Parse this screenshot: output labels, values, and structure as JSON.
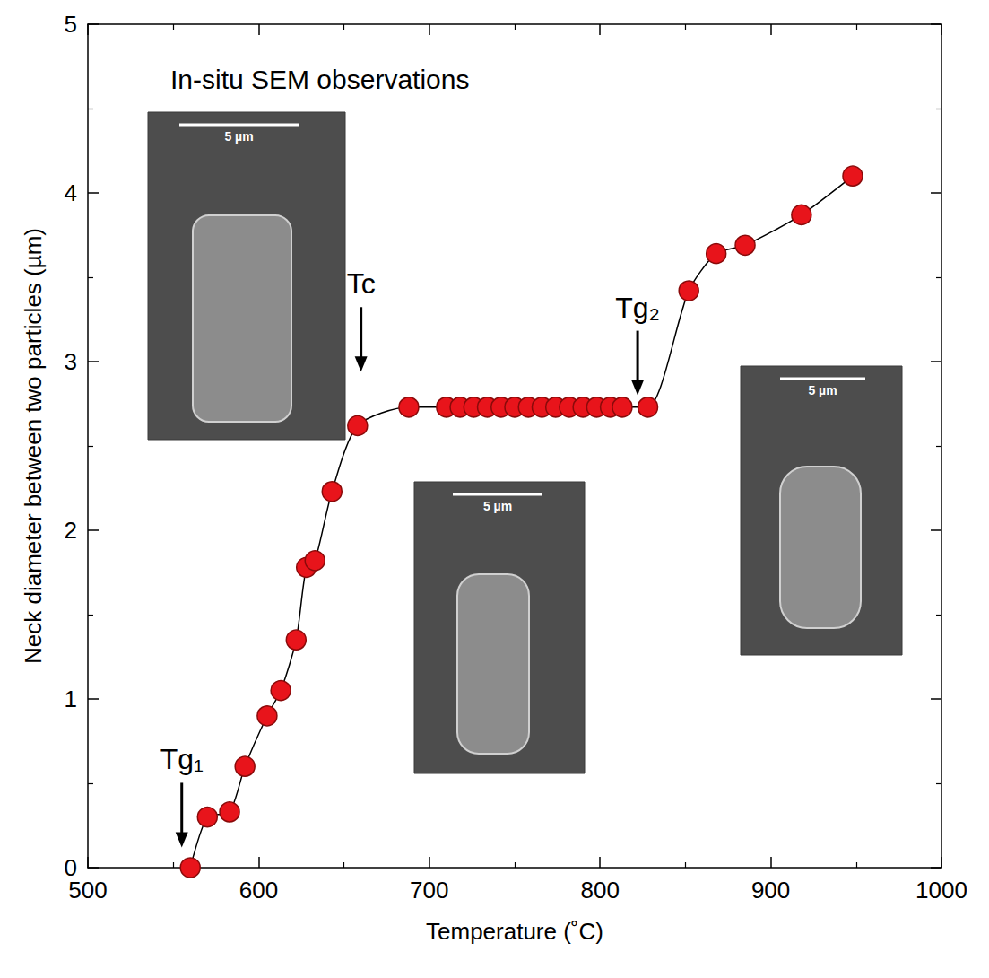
{
  "chart_data": {
    "type": "line",
    "title": "In-situ SEM observations",
    "x_label": "Temperature (˚C)",
    "y_label": "Neck diameter between two particles (µm)",
    "x": [
      560,
      570,
      583,
      592,
      605,
      613,
      622,
      628,
      633,
      643,
      658,
      688,
      710,
      718,
      726,
      734,
      742,
      750,
      758,
      766,
      774,
      782,
      790,
      798,
      806,
      813,
      828,
      852,
      868,
      885,
      918,
      948
    ],
    "values": [
      0,
      0.3,
      0.33,
      0.6,
      0.9,
      1.05,
      1.35,
      1.78,
      1.82,
      2.23,
      2.62,
      2.73,
      2.73,
      2.73,
      2.73,
      2.73,
      2.73,
      2.73,
      2.73,
      2.73,
      2.73,
      2.73,
      2.73,
      2.73,
      2.73,
      2.73,
      2.73,
      3.42,
      3.64,
      3.69,
      3.87,
      4.1
    ],
    "color": "#e8141b",
    "marker": "circle",
    "xlim": [
      500,
      1000
    ],
    "xticks": [
      500,
      600,
      700,
      800,
      900,
      1000
    ],
    "ylim": [
      0,
      5
    ],
    "yticks": [
      0,
      1,
      2,
      3,
      4,
      5
    ],
    "grid": false,
    "annotations": [
      {
        "text": "Tg₁",
        "x": 555,
        "y": 0.12
      },
      {
        "text": "Tc",
        "x": 660,
        "y": 2.94
      },
      {
        "text": "Tg₂",
        "x": 822,
        "y": 2.8
      }
    ],
    "inset_scale_bars": [
      "5 µm",
      "5 µm",
      "5 µm"
    ]
  }
}
